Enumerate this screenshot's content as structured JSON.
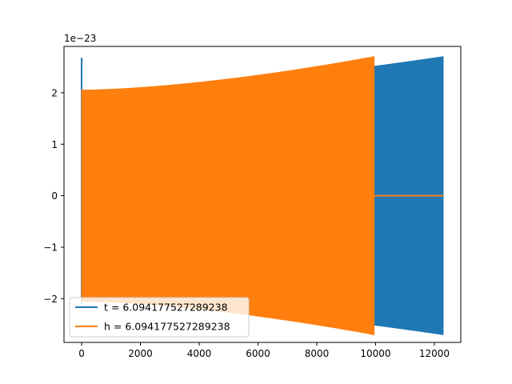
{
  "chart_data": {
    "type": "line",
    "title": "",
    "xlabel": "",
    "ylabel": "",
    "offset_text": "1e−23",
    "xlim": [
      -600,
      12900
    ],
    "ylim": [
      -2.85,
      2.9
    ],
    "x_ticks": [
      0,
      2000,
      4000,
      6000,
      8000,
      10000,
      12000
    ],
    "x_tick_labels": [
      "0",
      "2000",
      "4000",
      "6000",
      "8000",
      "10000",
      "12000"
    ],
    "y_ticks": [
      -2,
      -1,
      0,
      1,
      2
    ],
    "y_tick_labels": [
      "−2",
      "−1",
      "0",
      "1",
      "2"
    ],
    "grid": false,
    "legend_position": "lower-left",
    "series": [
      {
        "name": "t = 6.094177527289238",
        "color": "#1f77b4",
        "envelope": {
          "x": [
            0,
            12300
          ],
          "amplitude_start": 2.05,
          "amplitude_end": 2.7,
          "initial_spike_x": 0,
          "initial_spike_max": 2.68,
          "initial_spike_min": -2.1
        }
      },
      {
        "name": "h = 6.094177527289238",
        "color": "#ff7f0e",
        "envelope": {
          "x": [
            0,
            9950
          ],
          "amplitude_start": 2.05,
          "amplitude_end": 2.7,
          "zero_after_x": 9950,
          "zero_until_x": 12300
        }
      }
    ]
  }
}
